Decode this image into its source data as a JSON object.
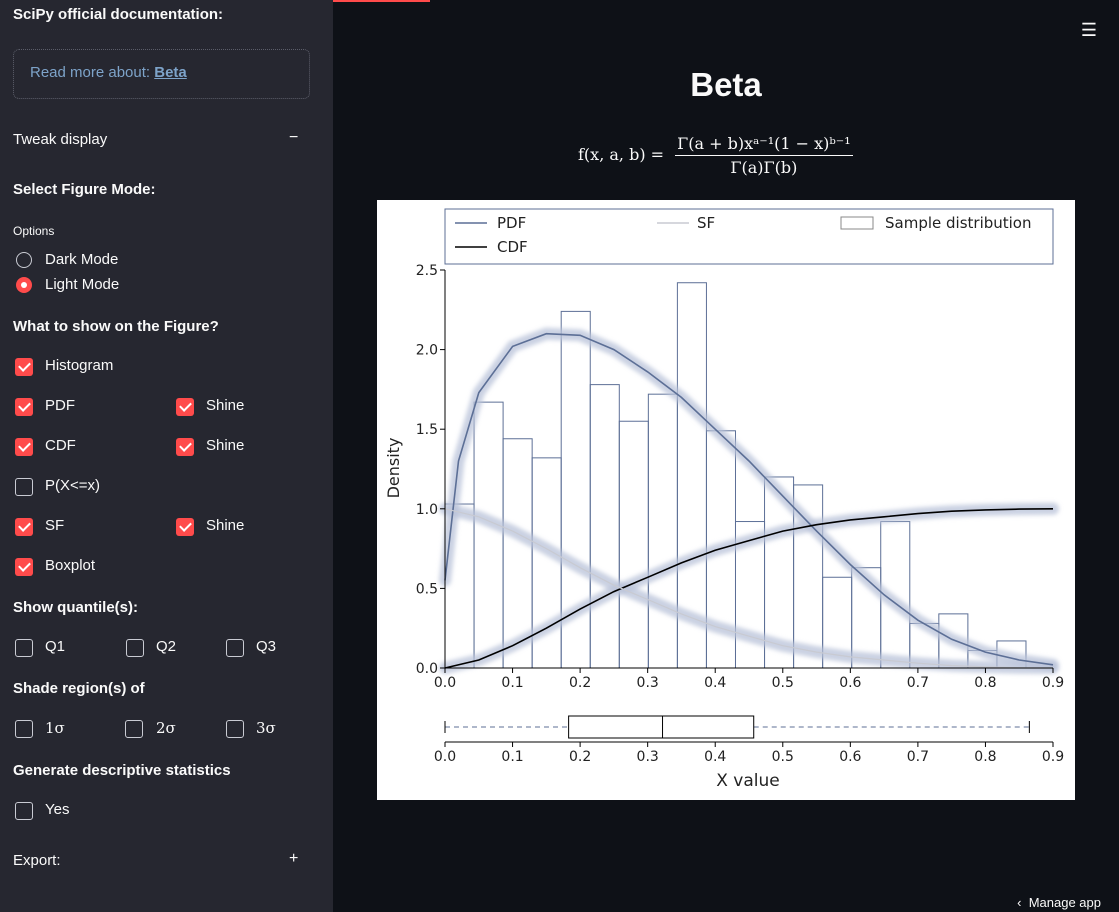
{
  "sidebar": {
    "docs_heading": "SciPy official documentation:",
    "read_more_prefix": "Read more about:",
    "read_more_link": "Beta",
    "tweak_display": "Tweak display",
    "tweak_toggle": "−",
    "select_mode_heading": "Select Figure Mode:",
    "options_label": "Options",
    "modes": [
      {
        "label": "Dark Mode",
        "selected": false
      },
      {
        "label": "Light Mode",
        "selected": true
      }
    ],
    "show_heading": "What to show on the Figure?",
    "histogram": {
      "label": "Histogram",
      "checked": true
    },
    "pdf": {
      "label": "PDF",
      "checked": true,
      "shine_label": "Shine",
      "shine_checked": true
    },
    "cdf": {
      "label": "CDF",
      "checked": true,
      "shine_label": "Shine",
      "shine_checked": true
    },
    "pxx": {
      "label": "P(X<=x)",
      "checked": false
    },
    "sf": {
      "label": "SF",
      "checked": true,
      "shine_label": "Shine",
      "shine_checked": true
    },
    "boxplot": {
      "label": "Boxplot",
      "checked": true
    },
    "quantile_heading": "Show quantile(s):",
    "quantiles": [
      "Q1",
      "Q2",
      "Q3"
    ],
    "shade_heading": "Shade region(s) of",
    "sigmas": [
      "1σ",
      "2σ",
      "3σ"
    ],
    "stats_heading": "Generate descriptive statistics",
    "stats_yes": "Yes",
    "export": "Export:",
    "export_toggle": "+"
  },
  "main": {
    "title": "Beta",
    "formula_lhs": "f(x, a, b) =",
    "formula_num": "Γ(a + b)xᵃ⁻¹(1 − x)ᵇ⁻¹",
    "formula_den": "Γ(a)Γ(b)",
    "menu_icon": "☰",
    "manage_app": "Manage app"
  },
  "chart_data": {
    "type": "bar",
    "xlabel": "X value",
    "ylabel": "Density",
    "xlim": [
      0.0,
      0.9
    ],
    "ylim": [
      0.0,
      2.5
    ],
    "xticks": [
      "0.0",
      "0.1",
      "0.2",
      "0.3",
      "0.4",
      "0.5",
      "0.6",
      "0.7",
      "0.8",
      "0.9"
    ],
    "yticks": [
      "0.0",
      "0.5",
      "1.0",
      "1.5",
      "2.0",
      "2.5"
    ],
    "legend": [
      "PDF",
      "SF",
      "Sample distribution",
      "CDF"
    ],
    "legend_placement": "top",
    "histogram": {
      "name": "Sample distribution",
      "bin_edges": [
        0.0,
        0.043,
        0.086,
        0.129,
        0.172,
        0.215,
        0.258,
        0.301,
        0.344,
        0.387,
        0.43,
        0.473,
        0.516,
        0.559,
        0.602,
        0.645,
        0.688,
        0.731,
        0.774,
        0.817,
        0.86
      ],
      "values": [
        1.03,
        1.67,
        1.44,
        1.32,
        2.24,
        1.78,
        1.55,
        1.72,
        2.42,
        1.49,
        0.92,
        1.2,
        1.15,
        0.57,
        0.63,
        0.92,
        0.28,
        0.34,
        0.11,
        0.17
      ]
    },
    "series": [
      {
        "name": "PDF",
        "x": [
          0,
          0.02,
          0.05,
          0.1,
          0.15,
          0.2,
          0.25,
          0.3,
          0.35,
          0.4,
          0.45,
          0.5,
          0.55,
          0.6,
          0.65,
          0.7,
          0.75,
          0.8,
          0.85,
          0.9
        ],
        "values": [
          0.55,
          1.3,
          1.73,
          2.02,
          2.1,
          2.09,
          2.0,
          1.86,
          1.7,
          1.5,
          1.3,
          1.08,
          0.86,
          0.65,
          0.46,
          0.3,
          0.18,
          0.1,
          0.05,
          0.02
        ]
      },
      {
        "name": "CDF",
        "x": [
          0,
          0.05,
          0.1,
          0.15,
          0.2,
          0.25,
          0.3,
          0.35,
          0.4,
          0.45,
          0.5,
          0.55,
          0.6,
          0.65,
          0.7,
          0.75,
          0.8,
          0.85,
          0.9
        ],
        "values": [
          0,
          0.05,
          0.14,
          0.25,
          0.37,
          0.48,
          0.57,
          0.66,
          0.74,
          0.8,
          0.86,
          0.9,
          0.93,
          0.95,
          0.97,
          0.985,
          0.993,
          0.998,
          1.0
        ]
      },
      {
        "name": "SF",
        "x": [
          0,
          0.05,
          0.1,
          0.15,
          0.2,
          0.25,
          0.3,
          0.35,
          0.4,
          0.45,
          0.5,
          0.55,
          0.6,
          0.65,
          0.7,
          0.75,
          0.8,
          0.85,
          0.9
        ],
        "values": [
          1.0,
          0.95,
          0.86,
          0.75,
          0.63,
          0.52,
          0.43,
          0.34,
          0.26,
          0.2,
          0.14,
          0.1,
          0.07,
          0.05,
          0.03,
          0.015,
          0.007,
          0.002,
          0.0
        ]
      }
    ],
    "boxplot": {
      "whisker_low": 0.0,
      "q1": 0.183,
      "median": 0.322,
      "q3": 0.457,
      "whisker_high": 0.865
    },
    "colors": {
      "pdf": "#5c6f96",
      "cdf": "#000000",
      "sf": "#c8cad2",
      "hist_edge": "#5c6f96",
      "shine": "#b8c2d8"
    }
  }
}
